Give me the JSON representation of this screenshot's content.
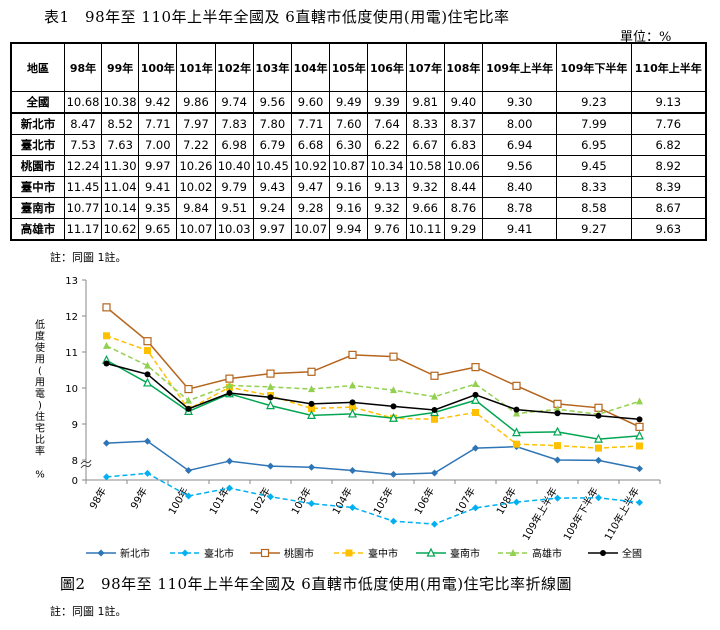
{
  "table": {
    "title": "表1　98年至 110年上半年全國及 6直轄市低度使用(用電)住宅比率",
    "unit": "單位：%",
    "header_first": "地區",
    "headers": [
      "98年",
      "99年",
      "100年",
      "101年",
      "102年",
      "103年",
      "104年",
      "105年",
      "106年",
      "107年",
      "108年",
      "109年上半年",
      "109年下半年",
      "110年上半年"
    ],
    "rows": [
      {
        "name": "全國",
        "values": [
          "10.68",
          "10.38",
          "9.42",
          "9.86",
          "9.74",
          "9.56",
          "9.60",
          "9.49",
          "9.39",
          "9.81",
          "9.40",
          "9.30",
          "9.23",
          "9.13"
        ]
      },
      {
        "name": "新北市",
        "values": [
          "8.47",
          "8.52",
          "7.71",
          "7.97",
          "7.83",
          "7.80",
          "7.71",
          "7.60",
          "7.64",
          "8.33",
          "8.37",
          "8.00",
          "7.99",
          "7.76"
        ]
      },
      {
        "name": "臺北市",
        "values": [
          "7.53",
          "7.63",
          "7.00",
          "7.22",
          "6.98",
          "6.79",
          "6.68",
          "6.30",
          "6.22",
          "6.67",
          "6.83",
          "6.94",
          "6.95",
          "6.82"
        ]
      },
      {
        "name": "桃園市",
        "values": [
          "12.24",
          "11.30",
          "9.97",
          "10.26",
          "10.40",
          "10.45",
          "10.92",
          "10.87",
          "10.34",
          "10.58",
          "10.06",
          "9.56",
          "9.45",
          "8.92"
        ]
      },
      {
        "name": "臺中市",
        "values": [
          "11.45",
          "11.04",
          "9.41",
          "10.02",
          "9.79",
          "9.43",
          "9.47",
          "9.16",
          "9.13",
          "9.32",
          "8.44",
          "8.40",
          "8.33",
          "8.39"
        ]
      },
      {
        "name": "臺南市",
        "values": [
          "10.77",
          "10.14",
          "9.35",
          "9.84",
          "9.51",
          "9.24",
          "9.28",
          "9.16",
          "9.32",
          "9.66",
          "8.76",
          "8.78",
          "8.58",
          "8.67"
        ]
      },
      {
        "name": "高雄市",
        "values": [
          "11.17",
          "10.62",
          "9.65",
          "10.07",
          "10.03",
          "9.97",
          "10.07",
          "9.94",
          "9.76",
          "10.11",
          "9.29",
          "9.41",
          "9.27",
          "9.63"
        ]
      }
    ]
  },
  "table_note": "註：同圖 1註。",
  "figure_caption": "圖2　98年至 110年上半年全國及 6直轄市低度使用(用電)住宅比率折線圖",
  "figure_note": "註：同圖 1註。",
  "chart_data": {
    "type": "line",
    "ylabel": "低度使用(用電)住宅比率 %",
    "ylim": [
      0,
      13
    ],
    "y_ticks": [
      "0",
      "8",
      "9",
      "10",
      "11",
      "12",
      "13"
    ],
    "axis_break": true,
    "categories": [
      "98年",
      "99年",
      "100年",
      "101年",
      "102年",
      "103年",
      "104年",
      "105年",
      "106年",
      "107年",
      "108年",
      "109年上半年",
      "109年下半年",
      "110年上半年"
    ],
    "legend_position": "bottom",
    "series": [
      {
        "name": "新北市",
        "color": "#2e75b6",
        "dash": "solid",
        "marker": "diamond",
        "values": [
          8.47,
          8.52,
          7.71,
          7.97,
          7.83,
          7.8,
          7.71,
          7.6,
          7.64,
          8.33,
          8.37,
          8.0,
          7.99,
          7.76
        ]
      },
      {
        "name": "臺北市",
        "color": "#00b0f0",
        "dash": "dashed",
        "marker": "diamond",
        "values": [
          7.53,
          7.63,
          7.0,
          7.22,
          6.98,
          6.79,
          6.68,
          6.3,
          6.22,
          6.67,
          6.83,
          6.94,
          6.95,
          6.82
        ]
      },
      {
        "name": "桃園市",
        "color": "#b5651d",
        "dash": "solid",
        "marker": "square-open",
        "values": [
          12.24,
          11.3,
          9.97,
          10.26,
          10.4,
          10.45,
          10.92,
          10.87,
          10.34,
          10.58,
          10.06,
          9.56,
          9.45,
          8.92
        ]
      },
      {
        "name": "臺中市",
        "color": "#ffc000",
        "dash": "dashed",
        "marker": "square",
        "values": [
          11.45,
          11.04,
          9.41,
          10.02,
          9.79,
          9.43,
          9.47,
          9.16,
          9.13,
          9.32,
          8.44,
          8.4,
          8.33,
          8.39
        ]
      },
      {
        "name": "臺南市",
        "color": "#00a651",
        "dash": "solid",
        "marker": "triangle-open",
        "values": [
          10.77,
          10.14,
          9.35,
          9.84,
          9.51,
          9.24,
          9.28,
          9.16,
          9.32,
          9.66,
          8.76,
          8.78,
          8.58,
          8.67
        ]
      },
      {
        "name": "高雄市",
        "color": "#92d050",
        "dash": "dashed",
        "marker": "triangle",
        "values": [
          11.17,
          10.62,
          9.65,
          10.07,
          10.03,
          9.97,
          10.07,
          9.94,
          9.76,
          10.11,
          9.29,
          9.41,
          9.27,
          9.63
        ]
      },
      {
        "name": "全國",
        "color": "#000000",
        "dash": "solid",
        "marker": "circle",
        "values": [
          10.68,
          10.38,
          9.42,
          9.86,
          9.74,
          9.56,
          9.6,
          9.49,
          9.39,
          9.81,
          9.4,
          9.3,
          9.23,
          9.13
        ]
      }
    ]
  }
}
